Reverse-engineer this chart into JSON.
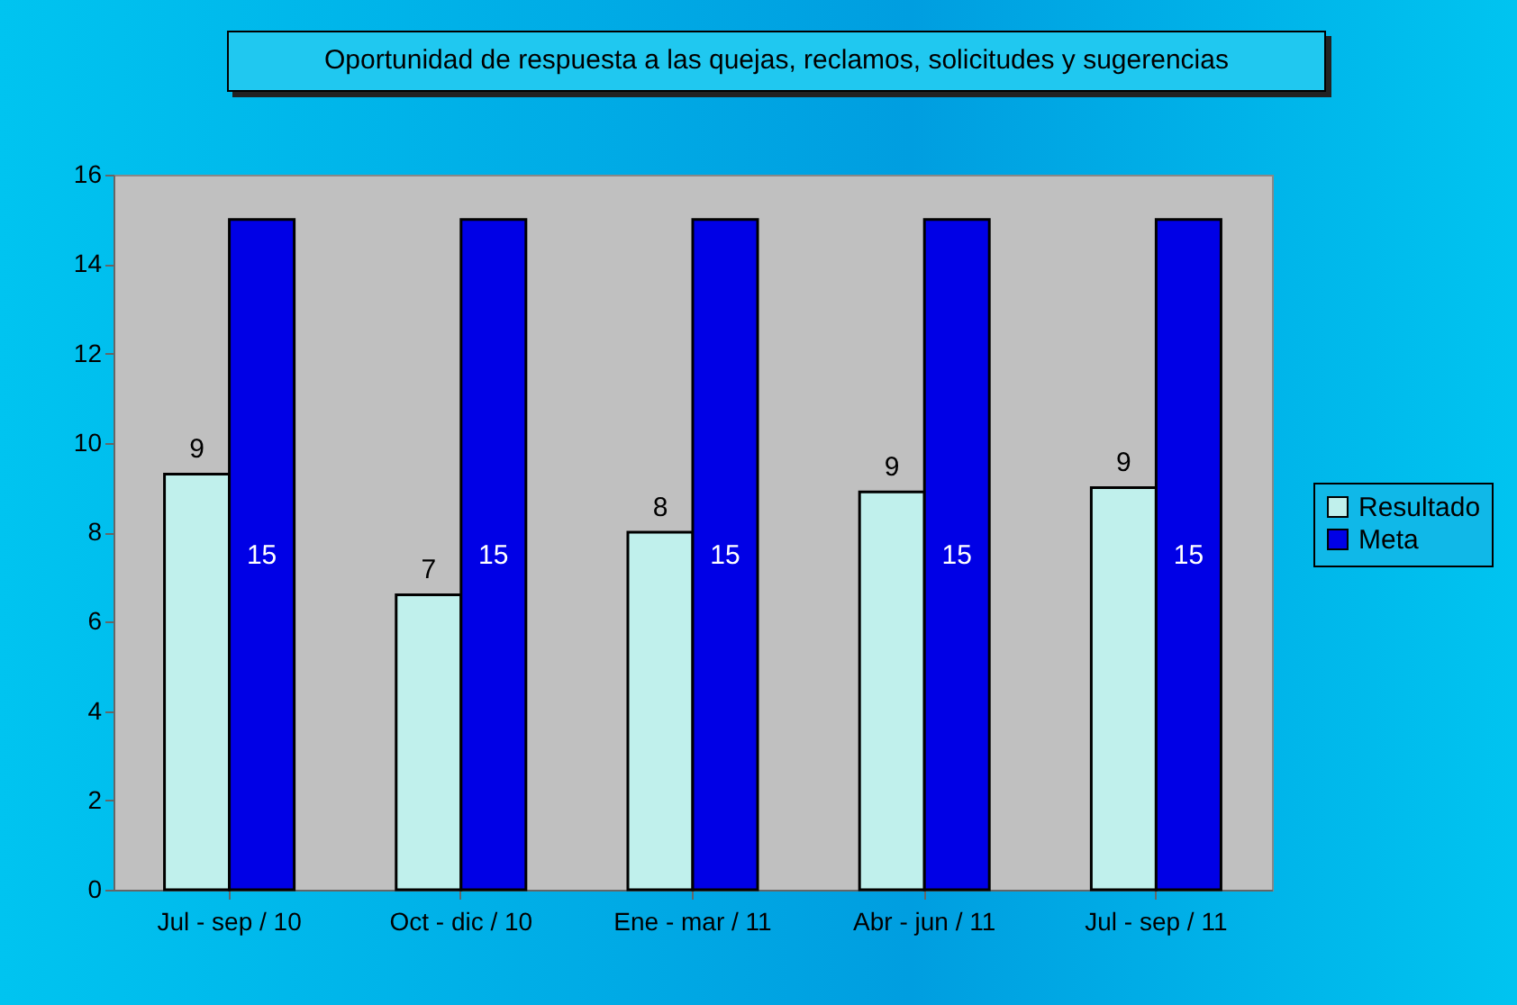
{
  "chart_data": {
    "type": "bar",
    "title": "Oportunidad de respuesta  a las quejas, reclamos, solicitudes y sugerencias",
    "categories": [
      "Jul - sep / 10",
      "Oct - dic / 10",
      "Ene - mar / 11",
      "Abr - jun / 11",
      "Jul - sep / 11"
    ],
    "series": [
      {
        "name": "Resultado",
        "color": "#c0f0ec",
        "values": [
          9.3,
          6.6,
          8.0,
          8.9,
          9.0
        ],
        "value_labels": [
          "9",
          "7",
          "8",
          "9",
          "9"
        ]
      },
      {
        "name": "Meta",
        "color": "#0000e6",
        "values": [
          15,
          15,
          15,
          15,
          15
        ],
        "value_labels": [
          "15",
          "15",
          "15",
          "15",
          "15"
        ]
      }
    ],
    "ylim": [
      0,
      16
    ],
    "yticks": [
      0,
      2,
      4,
      6,
      8,
      10,
      12,
      14,
      16
    ],
    "grid": false,
    "legend": "right"
  }
}
